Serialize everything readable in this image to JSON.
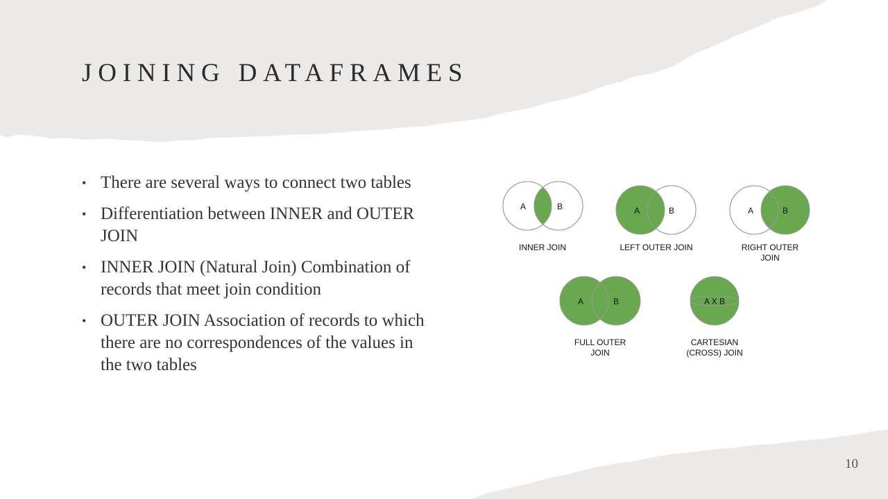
{
  "slide": {
    "title": "JOINING DATAFRAMES",
    "page_number": "10"
  },
  "bullets": [
    "There are several ways to connect two tables",
    "Differentiation between INNER and OUTER JOIN",
    "INNER JOIN (Natural Join) Combination of records that meet join condition",
    "OUTER JOIN Association of records to which there are no correspondences of the values in the two tables"
  ],
  "diagram": {
    "fill_color": "#6aa84f",
    "stroke_color": "#9a9a9a",
    "set_a": "A",
    "set_b": "B",
    "cross_label": "A X B",
    "joins": [
      {
        "name_line1": "INNER JOIN",
        "name_line2": ""
      },
      {
        "name_line1": "LEFT OUTER JOIN",
        "name_line2": ""
      },
      {
        "name_line1": "RIGHT OUTER",
        "name_line2": "JOIN"
      },
      {
        "name_line1": "FULL OUTER",
        "name_line2": "JOIN"
      },
      {
        "name_line1": "CARTESIAN",
        "name_line2": "(CROSS) JOIN"
      }
    ]
  }
}
